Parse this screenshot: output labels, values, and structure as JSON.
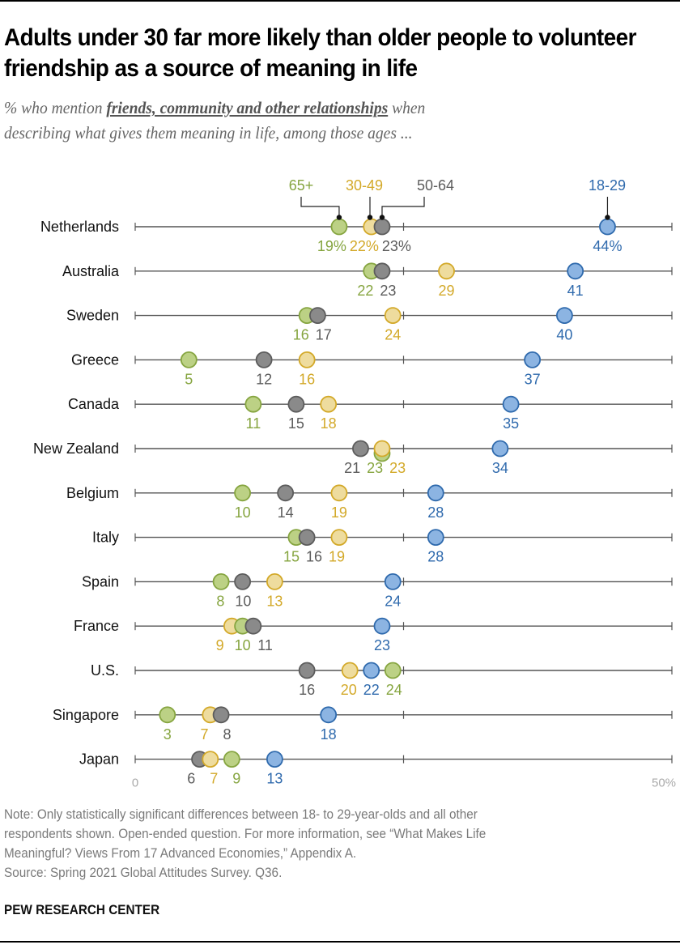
{
  "title": "Adults under 30 far more likely than older people to volunteer friendship as a source of meaning in life",
  "subtitle": {
    "prefix": "% who mention ",
    "emphasis": "friends, community and other relationships",
    "suffix_line1": " when",
    "line2": "describing what gives them meaning in life, among those ages ..."
  },
  "note_lines": [
    "Note: Only statistically significant differences between 18- to 29-year-olds and all other",
    "respondents shown. Open-ended question. For more information, see “What Makes Life",
    "Meaningful? Views From 17 Advanced Economies,” Appendix A.",
    "Source: Spring 2021 Global Attitudes Survey. Q36."
  ],
  "brand": "PEW RESEARCH CENTER",
  "colors": {
    "18-29": {
      "fill": "#8cb4e2",
      "stroke": "#2f6aad",
      "text": "#2f6aad"
    },
    "30-49": {
      "fill": "#eedc9e",
      "stroke": "#d3a929",
      "text": "#d3a929"
    },
    "50-64": {
      "fill": "#8a8a8a",
      "stroke": "#5c5c5c",
      "text": "#5c5c5c"
    },
    "65+": {
      "fill": "#bcd185",
      "stroke": "#86a540",
      "text": "#86a540"
    }
  },
  "chart_data": {
    "type": "dot-plot",
    "title": "Adults under 30 far more likely than older people to volunteer friendship as a source of meaning in life",
    "xlabel": "",
    "ylabel": "",
    "xlim": [
      0,
      50
    ],
    "x_tick_labels": [
      "0",
      "50%"
    ],
    "x_ticks": [
      0,
      25,
      50
    ],
    "legend_placement": "top (annotated on first row)",
    "unit_suffix_first_row": "%",
    "series_names": [
      "18-29",
      "30-49",
      "50-64",
      "65+"
    ],
    "categories": [
      "Netherlands",
      "Australia",
      "Sweden",
      "Greece",
      "Canada",
      "New Zealand",
      "Belgium",
      "Italy",
      "Spain",
      "France",
      "U.S.",
      "Singapore",
      "Japan"
    ],
    "series": [
      {
        "name": "18-29",
        "values": [
          44,
          41,
          40,
          37,
          35,
          34,
          28,
          28,
          24,
          23,
          22,
          18,
          13
        ]
      },
      {
        "name": "30-49",
        "values": [
          22,
          29,
          24,
          16,
          18,
          23,
          19,
          19,
          13,
          9,
          20,
          7,
          7
        ]
      },
      {
        "name": "50-64",
        "values": [
          23,
          23,
          17,
          12,
          15,
          21,
          14,
          16,
          10,
          11,
          16,
          8,
          6
        ]
      },
      {
        "name": "65+",
        "values": [
          19,
          22,
          16,
          5,
          11,
          23,
          10,
          15,
          8,
          10,
          24,
          3,
          9
        ]
      }
    ]
  }
}
